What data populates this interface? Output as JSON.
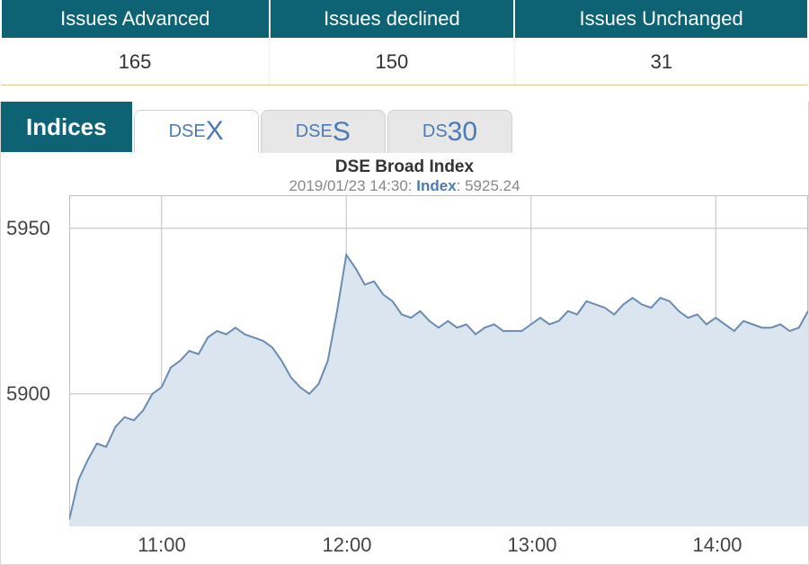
{
  "table": {
    "headers": [
      "Issues Advanced",
      "Issues declined",
      "Issues Unchanged"
    ],
    "values": [
      "165",
      "150",
      "31"
    ],
    "header_bg": "#0d6374",
    "header_color": "#ffffff",
    "value_color": "#333333",
    "row_border": "#e0c890"
  },
  "tabs": {
    "indices_label": "Indices",
    "indices_bg": "#0d6374",
    "items": [
      {
        "prefix": "DSE",
        "suffix": "X",
        "active": true
      },
      {
        "prefix": "DSE",
        "suffix": "S",
        "active": false
      },
      {
        "prefix": "DS",
        "suffix": "30",
        "active": false
      }
    ],
    "active_bg": "#ffffff",
    "inactive_bg": "#e7e7e7",
    "tab_text_color": "#4a7bb5"
  },
  "chart": {
    "type": "area",
    "title": "DSE Broad Index",
    "subtitle_time": "2019/01/23 14:30:",
    "subtitle_label": "Index",
    "subtitle_value": ": 5925.24",
    "title_fontsize": 19,
    "sub_fontsize": 17,
    "line_color": "#6b8bb0",
    "fill_color": "#dbe5f0",
    "fill_opacity": 1.0,
    "grid_color": "#c0c0c0",
    "background_color": "#ffffff",
    "line_width": 2,
    "ylim": [
      5860,
      5960
    ],
    "yticks": [
      5900,
      5950
    ],
    "xlim": [
      10.5,
      14.5
    ],
    "xticks": [
      11,
      12,
      13,
      14
    ],
    "xtick_labels": [
      "11:00",
      "12:00",
      "13:00",
      "14:00"
    ],
    "series": {
      "x": [
        10.5,
        10.55,
        10.6,
        10.65,
        10.7,
        10.75,
        10.8,
        10.85,
        10.9,
        10.95,
        11.0,
        11.05,
        11.1,
        11.15,
        11.2,
        11.25,
        11.3,
        11.35,
        11.4,
        11.45,
        11.5,
        11.55,
        11.6,
        11.65,
        11.7,
        11.75,
        11.8,
        11.85,
        11.9,
        11.95,
        12.0,
        12.05,
        12.1,
        12.15,
        12.2,
        12.25,
        12.3,
        12.35,
        12.4,
        12.45,
        12.5,
        12.55,
        12.6,
        12.65,
        12.7,
        12.75,
        12.8,
        12.85,
        12.9,
        12.95,
        13.0,
        13.05,
        13.1,
        13.15,
        13.2,
        13.25,
        13.3,
        13.35,
        13.4,
        13.45,
        13.5,
        13.55,
        13.6,
        13.65,
        13.7,
        13.75,
        13.8,
        13.85,
        13.9,
        13.95,
        14.0,
        14.05,
        14.1,
        14.15,
        14.2,
        14.25,
        14.3,
        14.35,
        14.4,
        14.45,
        14.5
      ],
      "y": [
        5862,
        5874,
        5880,
        5885,
        5884,
        5890,
        5893,
        5892,
        5895,
        5900,
        5902,
        5908,
        5910,
        5913,
        5912,
        5917,
        5919,
        5918,
        5920,
        5918,
        5917,
        5916,
        5914,
        5910,
        5905,
        5902,
        5900,
        5903,
        5910,
        5925,
        5942,
        5938,
        5933,
        5934,
        5930,
        5928,
        5924,
        5923,
        5925,
        5922,
        5920,
        5922,
        5920,
        5921,
        5918,
        5920,
        5921,
        5919,
        5919,
        5919,
        5921,
        5923,
        5921,
        5922,
        5925,
        5924,
        5928,
        5927,
        5926,
        5924,
        5927,
        5929,
        5927,
        5926,
        5929,
        5928,
        5925,
        5923,
        5924,
        5921,
        5923,
        5921,
        5919,
        5922,
        5921,
        5920,
        5920,
        5921,
        5919,
        5920,
        5925
      ]
    }
  }
}
